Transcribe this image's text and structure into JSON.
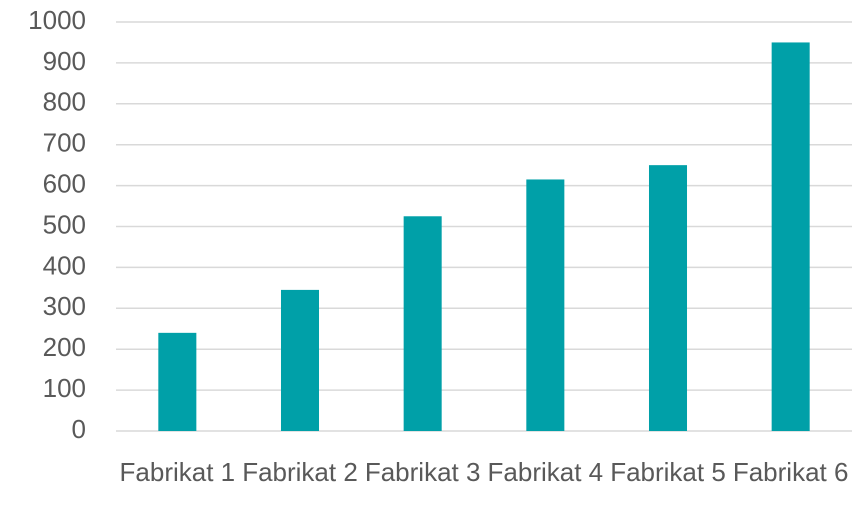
{
  "chart_data": {
    "type": "bar",
    "categories": [
      "Fabrikat 1",
      "Fabrikat 2",
      "Fabrikat 3",
      "Fabrikat 4",
      "Fabrikat 5",
      "Fabrikat 6"
    ],
    "values": [
      240,
      345,
      525,
      615,
      650,
      950
    ],
    "color": "#00a0a8",
    "ylim": [
      0,
      1000
    ],
    "yticks": [
      0,
      100,
      200,
      300,
      400,
      500,
      600,
      700,
      800,
      900,
      1000
    ],
    "grid": true
  }
}
